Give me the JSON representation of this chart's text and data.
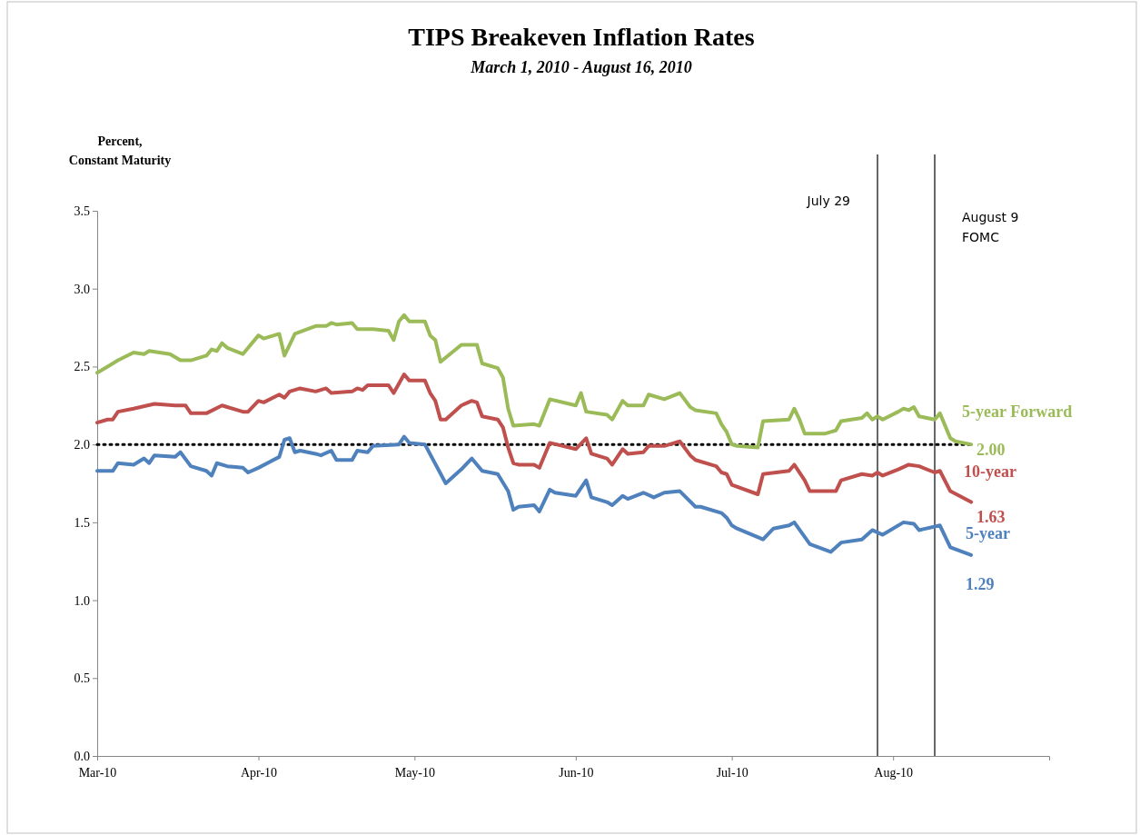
{
  "chart_data": {
    "type": "line",
    "title": "TIPS Breakeven Inflation Rates",
    "subtitle": "March 1, 2010 - August 16, 2010",
    "ylabel": "Percent,\nConstant Maturity",
    "xlim": [
      "2010-03-01",
      "2010-08-31"
    ],
    "xticks": [
      {
        "value": "2010-03-01",
        "label": "Mar-10"
      },
      {
        "value": "2010-04-01",
        "label": "Apr-10"
      },
      {
        "value": "2010-05-01",
        "label": "May-10"
      },
      {
        "value": "2010-06-01",
        "label": "Jun-10"
      },
      {
        "value": "2010-07-01",
        "label": "Jul-10"
      },
      {
        "value": "2010-08-01",
        "label": "Aug-10"
      }
    ],
    "ylim": [
      0,
      3.5
    ],
    "yticks": [
      {
        "value": 0,
        "label": "0.0"
      },
      {
        "value": 0.5,
        "label": "0.5"
      },
      {
        "value": 1,
        "label": "1.0"
      },
      {
        "value": 1.5,
        "label": "1.5"
      },
      {
        "value": 2,
        "label": "2.0"
      },
      {
        "value": 2.5,
        "label": "2.5"
      },
      {
        "value": 3,
        "label": "3.0"
      },
      {
        "value": 3.5,
        "label": "3.5"
      }
    ],
    "grid": false,
    "legend": false,
    "marker": "none",
    "line_style": "solid",
    "series": [
      {
        "name": "5-year Forward",
        "color": "#9bbb59",
        "x": [
          "2010-03-01",
          "2010-03-03",
          "2010-03-05",
          "2010-03-08",
          "2010-03-10",
          "2010-03-11",
          "2010-03-15",
          "2010-03-17",
          "2010-03-19",
          "2010-03-22",
          "2010-03-23",
          "2010-03-24",
          "2010-03-25",
          "2010-03-26",
          "2010-03-29",
          "2010-04-01",
          "2010-04-02",
          "2010-04-05",
          "2010-04-06",
          "2010-04-08",
          "2010-04-12",
          "2010-04-14",
          "2010-04-15",
          "2010-04-16",
          "2010-04-19",
          "2010-04-20",
          "2010-04-21",
          "2010-04-23",
          "2010-04-26",
          "2010-04-27",
          "2010-04-28",
          "2010-04-29",
          "2010-04-30",
          "2010-05-03",
          "2010-05-04",
          "2010-05-05",
          "2010-05-06",
          "2010-05-10",
          "2010-05-13",
          "2010-05-14",
          "2010-05-17",
          "2010-05-18",
          "2010-05-19",
          "2010-05-20",
          "2010-05-24",
          "2010-05-25",
          "2010-05-27",
          "2010-06-01",
          "2010-06-02",
          "2010-06-03",
          "2010-06-07",
          "2010-06-08",
          "2010-06-10",
          "2010-06-11",
          "2010-06-14",
          "2010-06-15",
          "2010-06-18",
          "2010-06-21",
          "2010-06-23",
          "2010-06-24",
          "2010-06-28",
          "2010-06-29",
          "2010-06-30",
          "2010-07-01",
          "2010-07-02",
          "2010-07-06",
          "2010-07-07",
          "2010-07-12",
          "2010-07-13",
          "2010-07-14",
          "2010-07-15",
          "2010-07-19",
          "2010-07-20",
          "2010-07-21",
          "2010-07-22",
          "2010-07-26",
          "2010-07-27",
          "2010-07-28",
          "2010-07-29",
          "2010-07-30",
          "2010-08-02",
          "2010-08-03",
          "2010-08-04",
          "2010-08-05",
          "2010-08-06",
          "2010-08-09",
          "2010-08-10",
          "2010-08-12",
          "2010-08-13",
          "2010-08-16"
        ],
        "values": [
          2.46,
          2.5,
          2.54,
          2.59,
          2.58,
          2.6,
          2.58,
          2.54,
          2.54,
          2.57,
          2.61,
          2.6,
          2.65,
          2.62,
          2.58,
          2.7,
          2.68,
          2.71,
          2.57,
          2.71,
          2.76,
          2.76,
          2.78,
          2.77,
          2.78,
          2.74,
          2.74,
          2.74,
          2.73,
          2.67,
          2.79,
          2.83,
          2.79,
          2.79,
          2.7,
          2.67,
          2.53,
          2.64,
          2.64,
          2.52,
          2.49,
          2.43,
          2.23,
          2.12,
          2.13,
          2.12,
          2.29,
          2.25,
          2.33,
          2.21,
          2.19,
          2.16,
          2.28,
          2.25,
          2.25,
          2.32,
          2.29,
          2.33,
          2.24,
          2.22,
          2.2,
          2.13,
          2.08,
          2.0,
          1.99,
          1.98,
          2.15,
          2.16,
          2.23,
          2.16,
          2.07,
          2.07,
          2.08,
          2.09,
          2.15,
          2.17,
          2.2,
          2.16,
          2.18,
          2.16,
          2.21,
          2.23,
          2.22,
          2.24,
          2.18,
          2.16,
          2.2,
          2.04,
          2.02,
          2.0
        ]
      },
      {
        "name": "10-year",
        "color": "#c0504d",
        "x": [
          "2010-03-01",
          "2010-03-03",
          "2010-03-04",
          "2010-03-05",
          "2010-03-08",
          "2010-03-12",
          "2010-03-16",
          "2010-03-18",
          "2010-03-19",
          "2010-03-22",
          "2010-03-25",
          "2010-03-26",
          "2010-03-29",
          "2010-03-30",
          "2010-04-01",
          "2010-04-02",
          "2010-04-05",
          "2010-04-06",
          "2010-04-07",
          "2010-04-09",
          "2010-04-12",
          "2010-04-13",
          "2010-04-14",
          "2010-04-15",
          "2010-04-19",
          "2010-04-20",
          "2010-04-21",
          "2010-04-22",
          "2010-04-26",
          "2010-04-27",
          "2010-04-29",
          "2010-04-30",
          "2010-05-03",
          "2010-05-04",
          "2010-05-05",
          "2010-05-06",
          "2010-05-07",
          "2010-05-10",
          "2010-05-12",
          "2010-05-13",
          "2010-05-14",
          "2010-05-17",
          "2010-05-18",
          "2010-05-19",
          "2010-05-20",
          "2010-05-21",
          "2010-05-24",
          "2010-05-25",
          "2010-05-27",
          "2010-06-01",
          "2010-06-03",
          "2010-06-04",
          "2010-06-07",
          "2010-06-08",
          "2010-06-10",
          "2010-06-11",
          "2010-06-14",
          "2010-06-15",
          "2010-06-18",
          "2010-06-21",
          "2010-06-23",
          "2010-06-24",
          "2010-06-28",
          "2010-06-29",
          "2010-06-30",
          "2010-07-01",
          "2010-07-06",
          "2010-07-07",
          "2010-07-12",
          "2010-07-13",
          "2010-07-15",
          "2010-07-16",
          "2010-07-21",
          "2010-07-22",
          "2010-07-26",
          "2010-07-28",
          "2010-07-29",
          "2010-07-30",
          "2010-08-02",
          "2010-08-04",
          "2010-08-06",
          "2010-08-09",
          "2010-08-10",
          "2010-08-12",
          "2010-08-16"
        ],
        "values": [
          2.14,
          2.16,
          2.16,
          2.21,
          2.23,
          2.26,
          2.25,
          2.25,
          2.2,
          2.2,
          2.25,
          2.24,
          2.21,
          2.21,
          2.28,
          2.27,
          2.32,
          2.3,
          2.34,
          2.36,
          2.34,
          2.35,
          2.36,
          2.33,
          2.34,
          2.36,
          2.35,
          2.38,
          2.38,
          2.33,
          2.45,
          2.41,
          2.41,
          2.33,
          2.28,
          2.16,
          2.16,
          2.25,
          2.28,
          2.27,
          2.18,
          2.16,
          2.11,
          1.98,
          1.88,
          1.87,
          1.87,
          1.85,
          2.01,
          1.97,
          2.04,
          1.94,
          1.91,
          1.87,
          1.97,
          1.94,
          1.95,
          1.99,
          1.99,
          2.02,
          1.93,
          1.9,
          1.86,
          1.82,
          1.81,
          1.74,
          1.68,
          1.81,
          1.83,
          1.87,
          1.77,
          1.7,
          1.7,
          1.77,
          1.81,
          1.8,
          1.82,
          1.8,
          1.84,
          1.87,
          1.86,
          1.82,
          1.83,
          1.7,
          1.63
        ]
      },
      {
        "name": "5-year",
        "color": "#4f81bd",
        "x": [
          "2010-03-01",
          "2010-03-04",
          "2010-03-05",
          "2010-03-08",
          "2010-03-10",
          "2010-03-11",
          "2010-03-12",
          "2010-03-16",
          "2010-03-17",
          "2010-03-19",
          "2010-03-22",
          "2010-03-23",
          "2010-03-24",
          "2010-03-26",
          "2010-03-29",
          "2010-03-30",
          "2010-04-01",
          "2010-04-05",
          "2010-04-06",
          "2010-04-07",
          "2010-04-08",
          "2010-04-09",
          "2010-04-12",
          "2010-04-13",
          "2010-04-15",
          "2010-04-16",
          "2010-04-19",
          "2010-04-20",
          "2010-04-22",
          "2010-04-23",
          "2010-04-28",
          "2010-04-29",
          "2010-04-30",
          "2010-05-03",
          "2010-05-07",
          "2010-05-10",
          "2010-05-12",
          "2010-05-14",
          "2010-05-17",
          "2010-05-19",
          "2010-05-20",
          "2010-05-21",
          "2010-05-24",
          "2010-05-25",
          "2010-05-27",
          "2010-05-28",
          "2010-06-01",
          "2010-06-03",
          "2010-06-04",
          "2010-06-07",
          "2010-06-08",
          "2010-06-10",
          "2010-06-11",
          "2010-06-14",
          "2010-06-16",
          "2010-06-18",
          "2010-06-21",
          "2010-06-24",
          "2010-06-25",
          "2010-06-29",
          "2010-06-30",
          "2010-07-01",
          "2010-07-02",
          "2010-07-07",
          "2010-07-09",
          "2010-07-12",
          "2010-07-13",
          "2010-07-16",
          "2010-07-20",
          "2010-07-22",
          "2010-07-26",
          "2010-07-28",
          "2010-07-30",
          "2010-08-03",
          "2010-08-05",
          "2010-08-06",
          "2010-08-10",
          "2010-08-12",
          "2010-08-16"
        ],
        "values": [
          1.83,
          1.83,
          1.88,
          1.87,
          1.91,
          1.88,
          1.93,
          1.92,
          1.95,
          1.86,
          1.83,
          1.8,
          1.88,
          1.86,
          1.85,
          1.82,
          1.85,
          1.92,
          2.03,
          2.04,
          1.95,
          1.96,
          1.94,
          1.93,
          1.96,
          1.9,
          1.9,
          1.96,
          1.95,
          1.99,
          2.0,
          2.05,
          2.01,
          2.0,
          1.75,
          1.84,
          1.91,
          1.83,
          1.81,
          1.7,
          1.58,
          1.6,
          1.61,
          1.57,
          1.71,
          1.69,
          1.67,
          1.77,
          1.66,
          1.63,
          1.61,
          1.67,
          1.65,
          1.69,
          1.66,
          1.69,
          1.7,
          1.6,
          1.6,
          1.56,
          1.53,
          1.48,
          1.46,
          1.39,
          1.46,
          1.48,
          1.5,
          1.36,
          1.31,
          1.37,
          1.39,
          1.45,
          1.42,
          1.5,
          1.49,
          1.45,
          1.48,
          1.34,
          1.29
        ]
      }
    ],
    "ref_lines": [
      {
        "axis": "y",
        "value": 2,
        "color": "#000000",
        "line_style": "dotted"
      },
      {
        "axis": "x",
        "value": "2010-07-29",
        "label": "July 29",
        "color": "#000000",
        "line_style": "solid"
      },
      {
        "axis": "x",
        "value": "2010-08-09",
        "label": "August 9\nFOMC",
        "color": "#000000",
        "line_style": "solid"
      }
    ],
    "annotations": [
      {
        "text": "2.00",
        "x": "2010-08-16",
        "y": 2.0
      },
      {
        "text": "1.63",
        "x": "2010-08-16",
        "y": 1.63
      },
      {
        "text": "1.29",
        "x": "2010-08-16",
        "y": 1.29
      }
    ]
  }
}
